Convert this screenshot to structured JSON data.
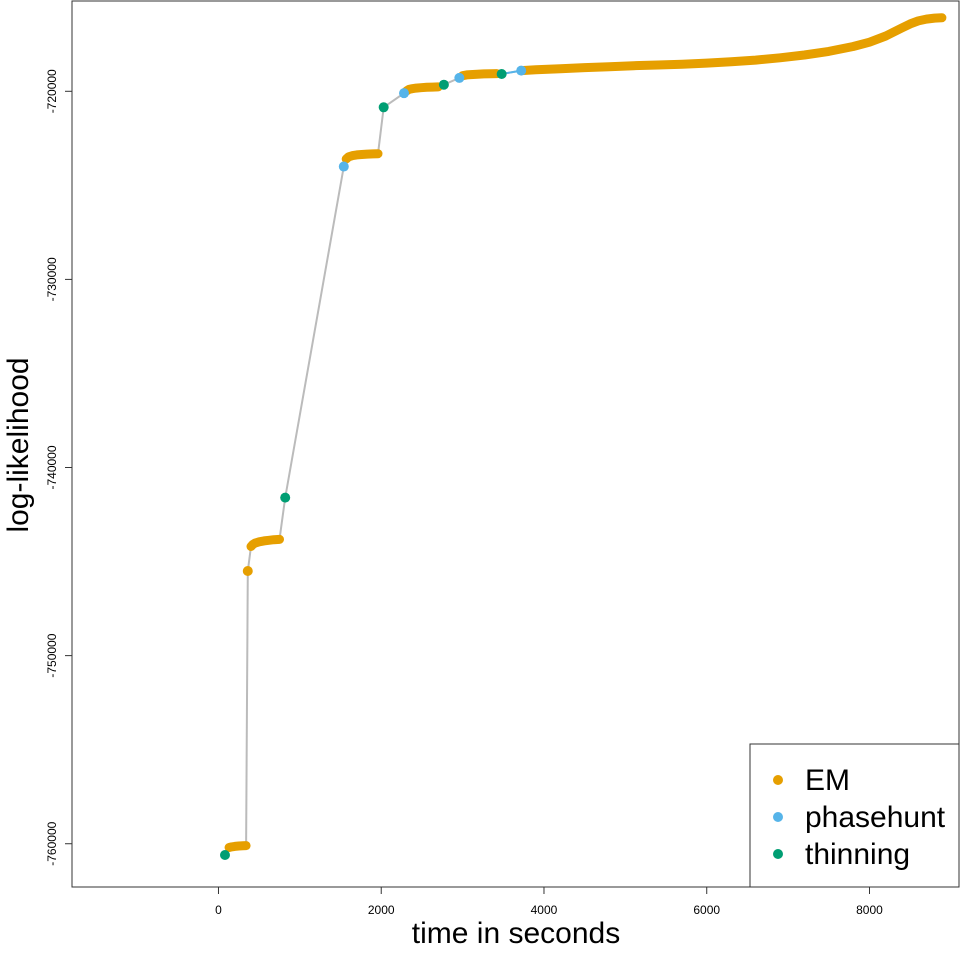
{
  "chart_data": {
    "type": "scatter",
    "xlabel": "time in seconds",
    "ylabel": "log-likelihood",
    "xlim": [
      -1800,
      9100
    ],
    "ylim": [
      -762300,
      -715200
    ],
    "x_ticks": [
      0,
      2000,
      4000,
      6000,
      8000
    ],
    "x_tick_labels": [
      "0",
      "2000",
      "4000",
      "6000",
      "8000"
    ],
    "y_ticks": [
      -720000,
      -730000,
      -740000,
      -750000,
      -760000
    ],
    "y_tick_labels": [
      "-720000",
      "-730000",
      "-740000",
      "-750000",
      "-760000"
    ],
    "grid": false,
    "legend_position": "bottom-right",
    "line_color": "#bbbbbb",
    "series": [
      {
        "name": "EM",
        "color": "#E69F00",
        "segments": [
          {
            "points": [
              [
                130,
                -760200
              ],
              [
                160,
                -760170
              ],
              [
                200,
                -760140
              ],
              [
                250,
                -760120
              ],
              [
                300,
                -760110
              ],
              [
                340,
                -760100
              ]
            ]
          },
          {
            "points": [
              [
                400,
                -744200
              ],
              [
                420,
                -744100
              ],
              [
                450,
                -744020
              ],
              [
                500,
                -743950
              ],
              [
                560,
                -743900
              ],
              [
                620,
                -743870
              ],
              [
                680,
                -743840
              ],
              [
                750,
                -743820
              ]
            ]
          },
          {
            "points": [
              [
                1570,
                -723600
              ],
              [
                1600,
                -723480
              ],
              [
                1650,
                -723420
              ],
              [
                1700,
                -723380
              ],
              [
                1760,
                -723360
              ],
              [
                1830,
                -723340
              ],
              [
                1900,
                -723330
              ],
              [
                1960,
                -723320
              ]
            ]
          },
          {
            "points": [
              [
                2310,
                -719980
              ],
              [
                2340,
                -719900
              ],
              [
                2380,
                -719860
              ],
              [
                2430,
                -719830
              ],
              [
                2490,
                -719810
              ],
              [
                2560,
                -719790
              ],
              [
                2630,
                -719775
              ],
              [
                2700,
                -719765
              ]
            ]
          },
          {
            "points": [
              [
                3000,
                -719170
              ],
              [
                3050,
                -719130
              ],
              [
                3100,
                -719110
              ],
              [
                3180,
                -719090
              ],
              [
                3260,
                -719075
              ],
              [
                3350,
                -719065
              ],
              [
                3420,
                -719060
              ]
            ]
          },
          {
            "points": [
              [
                3720,
                -718900
              ],
              [
                3900,
                -718860
              ],
              [
                4200,
                -718800
              ],
              [
                4500,
                -718740
              ],
              [
                4800,
                -718690
              ],
              [
                5100,
                -718640
              ],
              [
                5400,
                -718600
              ],
              [
                5700,
                -718560
              ],
              [
                6000,
                -718500
              ],
              [
                6300,
                -718430
              ],
              [
                6600,
                -718340
              ],
              [
                6900,
                -718220
              ],
              [
                7200,
                -718070
              ],
              [
                7500,
                -717880
              ],
              [
                7800,
                -717620
              ],
              [
                8000,
                -717390
              ],
              [
                8200,
                -717060
              ],
              [
                8400,
                -716630
              ],
              [
                8500,
                -716420
              ],
              [
                8600,
                -716260
              ],
              [
                8700,
                -716160
              ],
              [
                8800,
                -716110
              ],
              [
                8890,
                -716090
              ]
            ]
          }
        ],
        "values": [
          [
            360,
            -745500
          ]
        ]
      },
      {
        "name": "phasehunt",
        "color": "#56B4E9",
        "values": [
          [
            1540,
            -724000
          ],
          [
            2280,
            -720100
          ],
          [
            2960,
            -719290
          ],
          [
            3720,
            -718900
          ]
        ]
      },
      {
        "name": "thinning",
        "color": "#009E73",
        "values": [
          [
            80,
            -760600
          ],
          [
            820,
            -741600
          ],
          [
            2030,
            -720850
          ],
          [
            2770,
            -719650
          ],
          [
            3480,
            -719080
          ]
        ]
      }
    ],
    "path_sequence": [
      [
        80,
        -760600
      ],
      [
        130,
        -760200
      ],
      [
        340,
        -760100
      ],
      [
        360,
        -745500
      ],
      [
        400,
        -744200
      ],
      [
        750,
        -743820
      ],
      [
        820,
        -741600
      ],
      [
        1540,
        -724000
      ],
      [
        1570,
        -723600
      ],
      [
        1960,
        -723320
      ],
      [
        2030,
        -720850
      ],
      [
        2280,
        -720100
      ],
      [
        2310,
        -719980
      ],
      [
        2700,
        -719765
      ],
      [
        2770,
        -719650
      ],
      [
        2960,
        -719290
      ],
      [
        3000,
        -719170
      ],
      [
        3420,
        -719060
      ],
      [
        3480,
        -719080
      ],
      [
        3720,
        -718900
      ]
    ]
  }
}
